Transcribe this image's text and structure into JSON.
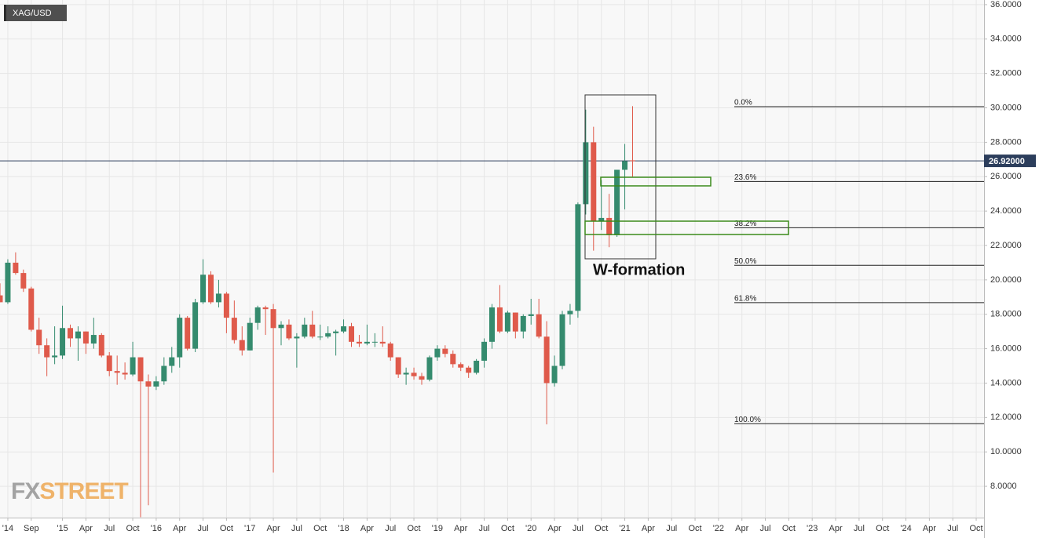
{
  "chart_data": {
    "type": "candlestick",
    "title": "XAG/USD",
    "annotation": "W-formation",
    "logo_fx": "FX",
    "logo_street": "STREET",
    "up_color": "#358b6e",
    "down_color": "#df5a4b",
    "grid": true,
    "x": [
      "2014-05",
      "2014-06",
      "2014-07",
      "2014-08",
      "2014-09",
      "2014-10",
      "2014-11",
      "2014-12",
      "2015-01",
      "2015-02",
      "2015-03",
      "2015-04",
      "2015-05",
      "2015-06",
      "2015-07",
      "2015-08",
      "2015-09",
      "2015-10",
      "2015-11",
      "2015-12",
      "2016-01",
      "2016-02",
      "2016-03",
      "2016-04",
      "2016-05",
      "2016-06",
      "2016-07",
      "2016-08",
      "2016-09",
      "2016-10",
      "2016-11",
      "2016-12",
      "2017-01",
      "2017-02",
      "2017-03",
      "2017-04",
      "2017-05",
      "2017-06",
      "2017-07",
      "2017-08",
      "2017-09",
      "2017-10",
      "2017-11",
      "2017-12",
      "2018-01",
      "2018-02",
      "2018-03",
      "2018-04",
      "2018-05",
      "2018-06",
      "2018-07",
      "2018-08",
      "2018-09",
      "2018-10",
      "2018-11",
      "2018-12",
      "2019-01",
      "2019-02",
      "2019-03",
      "2019-04",
      "2019-05",
      "2019-06",
      "2019-07",
      "2019-08",
      "2019-09",
      "2019-10",
      "2019-11",
      "2019-12",
      "2020-01",
      "2020-02",
      "2020-03",
      "2020-04",
      "2020-05",
      "2020-06",
      "2020-07",
      "2020-08",
      "2020-09",
      "2020-10",
      "2020-11",
      "2020-12",
      "2021-01",
      "2021-02"
    ],
    "open": [
      19.1,
      18.7,
      21.0,
      20.4,
      19.5,
      17.1,
      16.2,
      15.5,
      15.6,
      17.2,
      16.6,
      17.0,
      16.3,
      16.8,
      15.6,
      14.7,
      14.6,
      14.5,
      15.5,
      14.1,
      13.8,
      14.1,
      15.0,
      15.5,
      17.8,
      16.0,
      18.7,
      20.3,
      18.7,
      19.2,
      17.8,
      16.5,
      15.9,
      17.5,
      18.4,
      18.3,
      17.2,
      17.4,
      16.6,
      16.7,
      17.4,
      16.7,
      16.7,
      16.9,
      17.0,
      17.3,
      16.4,
      16.3,
      16.4,
      16.4,
      16.3,
      15.5,
      14.5,
      14.6,
      14.4,
      14.2,
      15.5,
      16.0,
      15.7,
      15.1,
      14.9,
      14.6,
      15.3,
      16.4,
      18.4,
      17.0,
      18.1,
      17.0,
      17.9,
      18.0,
      16.7,
      14.0,
      15.0,
      18.0,
      18.2,
      24.4,
      28.0,
      23.4,
      23.6,
      22.6,
      26.4,
      26.95
    ],
    "high": [
      19.8,
      21.2,
      21.6,
      20.6,
      19.6,
      17.8,
      16.6,
      17.3,
      18.5,
      17.4,
      17.3,
      17.0,
      17.8,
      16.9,
      15.8,
      15.6,
      15.2,
      16.4,
      15.5,
      14.5,
      14.4,
      15.5,
      16.1,
      18.0,
      17.9,
      18.9,
      21.2,
      20.5,
      20.0,
      19.3,
      18.8,
      17.3,
      17.8,
      18.5,
      18.5,
      18.6,
      17.6,
      17.7,
      16.9,
      17.8,
      18.2,
      17.4,
      17.3,
      17.1,
      17.7,
      17.5,
      16.8,
      17.4,
      16.9,
      17.3,
      16.4,
      15.5,
      14.9,
      14.9,
      14.6,
      15.6,
      16.2,
      16.2,
      15.9,
      15.2,
      15.0,
      15.4,
      16.6,
      18.6,
      19.7,
      18.2,
      18.1,
      18.0,
      18.9,
      18.9,
      17.6,
      15.6,
      18.2,
      18.6,
      24.5,
      29.9,
      28.9,
      25.8,
      25.0,
      26.4,
      27.9,
      30.1
    ],
    "low": [
      18.7,
      18.6,
      20.3,
      19.3,
      17.0,
      15.7,
      14.4,
      15.1,
      15.4,
      16.1,
      15.3,
      15.7,
      16.0,
      15.5,
      14.4,
      13.9,
      14.2,
      14.4,
      6.2,
      6.9,
      13.6,
      13.9,
      14.6,
      14.9,
      15.9,
      15.8,
      18.6,
      18.6,
      18.4,
      16.9,
      16.3,
      15.6,
      15.9,
      17.1,
      16.8,
      8.8,
      16.2,
      16.5,
      14.9,
      16.6,
      16.6,
      16.5,
      16.6,
      15.6,
      16.9,
      16.1,
      16.1,
      16.2,
      16.1,
      16.1,
      15.3,
      14.3,
      13.9,
      14.2,
      13.9,
      14.1,
      15.3,
      15.5,
      14.9,
      14.7,
      14.3,
      14.5,
      14.9,
      16.0,
      16.9,
      16.9,
      16.6,
      16.6,
      17.4,
      16.6,
      11.6,
      13.8,
      14.8,
      17.4,
      17.8,
      23.8,
      21.7,
      22.9,
      21.9,
      22.5,
      24.1,
      26.0
    ],
    "close": [
      18.7,
      21.0,
      20.4,
      19.5,
      17.1,
      16.2,
      15.5,
      15.6,
      17.2,
      16.6,
      17.0,
      16.3,
      16.8,
      15.6,
      14.7,
      14.6,
      14.5,
      15.5,
      14.1,
      13.8,
      14.1,
      15.0,
      15.5,
      17.8,
      16.0,
      18.7,
      20.3,
      18.7,
      19.2,
      17.8,
      16.5,
      15.9,
      17.5,
      18.4,
      18.3,
      17.2,
      17.4,
      16.6,
      16.7,
      17.4,
      16.7,
      16.7,
      16.9,
      17.0,
      17.3,
      16.4,
      16.3,
      16.4,
      16.4,
      16.3,
      15.5,
      14.5,
      14.6,
      14.4,
      14.2,
      15.5,
      16.0,
      15.7,
      15.1,
      14.9,
      14.6,
      15.3,
      16.4,
      18.4,
      17.0,
      18.1,
      17.0,
      17.9,
      18.0,
      16.7,
      14.0,
      15.0,
      18.0,
      18.2,
      24.4,
      28.0,
      23.4,
      23.6,
      22.6,
      26.4,
      26.9,
      26.92
    ],
    "last_price": {
      "value": 26.92,
      "label": "26.92000"
    },
    "fib_levels": [
      {
        "label": "0.0%",
        "value": 30.07
      },
      {
        "label": "23.6%",
        "value": 25.72
      },
      {
        "label": "38.2%",
        "value": 23.03
      },
      {
        "label": "50.0%",
        "value": 20.85
      },
      {
        "label": "61.8%",
        "value": 18.68
      },
      {
        "label": "100.0%",
        "value": 11.64
      }
    ],
    "xlim": [
      "2014-05",
      "2024-11"
    ],
    "ylim": [
      6.18,
      36.27
    ],
    "yticks": [
      {
        "value": 8,
        "label": "8.0000"
      },
      {
        "value": 10,
        "label": "10.0000"
      },
      {
        "value": 12,
        "label": "12.0000"
      },
      {
        "value": 14,
        "label": "14.0000"
      },
      {
        "value": 16,
        "label": "16.0000"
      },
      {
        "value": 18,
        "label": "18.0000"
      },
      {
        "value": 20,
        "label": "20.0000"
      },
      {
        "value": 22,
        "label": "22.0000"
      },
      {
        "value": 24,
        "label": "24.0000"
      },
      {
        "value": 26,
        "label": "26.0000"
      },
      {
        "value": 28,
        "label": "28.0000"
      },
      {
        "value": 30,
        "label": "30.0000"
      },
      {
        "value": 32,
        "label": "32.0000"
      },
      {
        "value": 34,
        "label": "34.0000"
      },
      {
        "value": 36,
        "label": "36.0000"
      }
    ],
    "xticks": [
      {
        "value": "2014-06",
        "label": "'14"
      },
      {
        "value": "2014-09",
        "label": "Sep"
      },
      {
        "value": "2015-01",
        "label": "'15"
      },
      {
        "value": "2015-04",
        "label": "Apr"
      },
      {
        "value": "2015-07",
        "label": "Jul"
      },
      {
        "value": "2015-10",
        "label": "Oct"
      },
      {
        "value": "2016-01",
        "label": "'16"
      },
      {
        "value": "2016-04",
        "label": "Apr"
      },
      {
        "value": "2016-07",
        "label": "Jul"
      },
      {
        "value": "2016-10",
        "label": "Oct"
      },
      {
        "value": "2017-01",
        "label": "'17"
      },
      {
        "value": "2017-04",
        "label": "Apr"
      },
      {
        "value": "2017-07",
        "label": "Jul"
      },
      {
        "value": "2017-10",
        "label": "Oct"
      },
      {
        "value": "2018-01",
        "label": "'18"
      },
      {
        "value": "2018-04",
        "label": "Apr"
      },
      {
        "value": "2018-07",
        "label": "Jul"
      },
      {
        "value": "2018-10",
        "label": "Oct"
      },
      {
        "value": "2019-01",
        "label": "'19"
      },
      {
        "value": "2019-04",
        "label": "Apr"
      },
      {
        "value": "2019-07",
        "label": "Jul"
      },
      {
        "value": "2019-10",
        "label": "Oct"
      },
      {
        "value": "2020-01",
        "label": "'20"
      },
      {
        "value": "2020-04",
        "label": "Apr"
      },
      {
        "value": "2020-07",
        "label": "Jul"
      },
      {
        "value": "2020-10",
        "label": "Oct"
      },
      {
        "value": "2021-01",
        "label": "'21"
      },
      {
        "value": "2021-04",
        "label": "Apr"
      },
      {
        "value": "2021-07",
        "label": "Jul"
      },
      {
        "value": "2021-10",
        "label": "Oct"
      },
      {
        "value": "2022-01",
        "label": "'22"
      },
      {
        "value": "2022-04",
        "label": "Apr"
      },
      {
        "value": "2022-07",
        "label": "Jul"
      },
      {
        "value": "2022-10",
        "label": "Oct"
      },
      {
        "value": "2023-01",
        "label": "'23"
      },
      {
        "value": "2023-04",
        "label": "Apr"
      },
      {
        "value": "2023-07",
        "label": "Jul"
      },
      {
        "value": "2023-10",
        "label": "Oct"
      },
      {
        "value": "2024-01",
        "label": "'24"
      },
      {
        "value": "2024-04",
        "label": "Apr"
      },
      {
        "value": "2024-07",
        "label": "Jul"
      },
      {
        "value": "2024-10",
        "label": "Oct"
      }
    ]
  }
}
